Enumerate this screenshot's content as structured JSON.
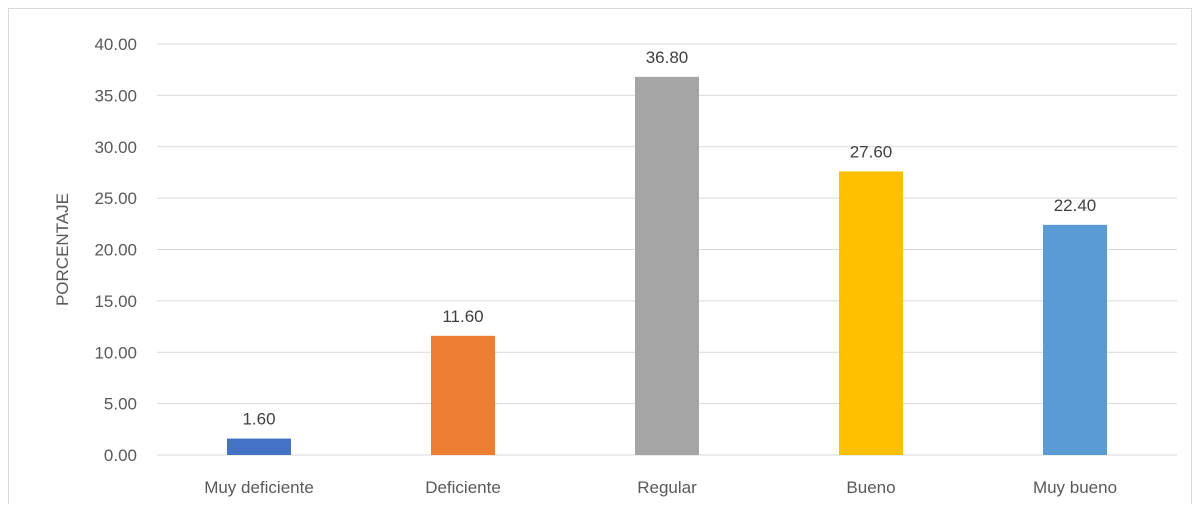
{
  "chart_data": {
    "type": "bar",
    "categories": [
      "Muy deficiente",
      "Deficiente",
      "Regular",
      "Bueno",
      "Muy bueno"
    ],
    "values": [
      1.6,
      11.6,
      36.8,
      27.6,
      22.4
    ],
    "data_labels": [
      "1.60",
      "11.60",
      "36.80",
      "27.60",
      "22.40"
    ],
    "colors": [
      "#4472c4",
      "#ed7d31",
      "#a5a5a5",
      "#ffc000",
      "#5b9bd5"
    ],
    "ylabel": "PORCENTAJE",
    "xlabel": "",
    "ylim": [
      0,
      40
    ],
    "yticks": [
      "0.00",
      "5.00",
      "10.00",
      "15.00",
      "20.00",
      "25.00",
      "30.00",
      "35.00",
      "40.00"
    ],
    "grid": true,
    "legend": false
  }
}
